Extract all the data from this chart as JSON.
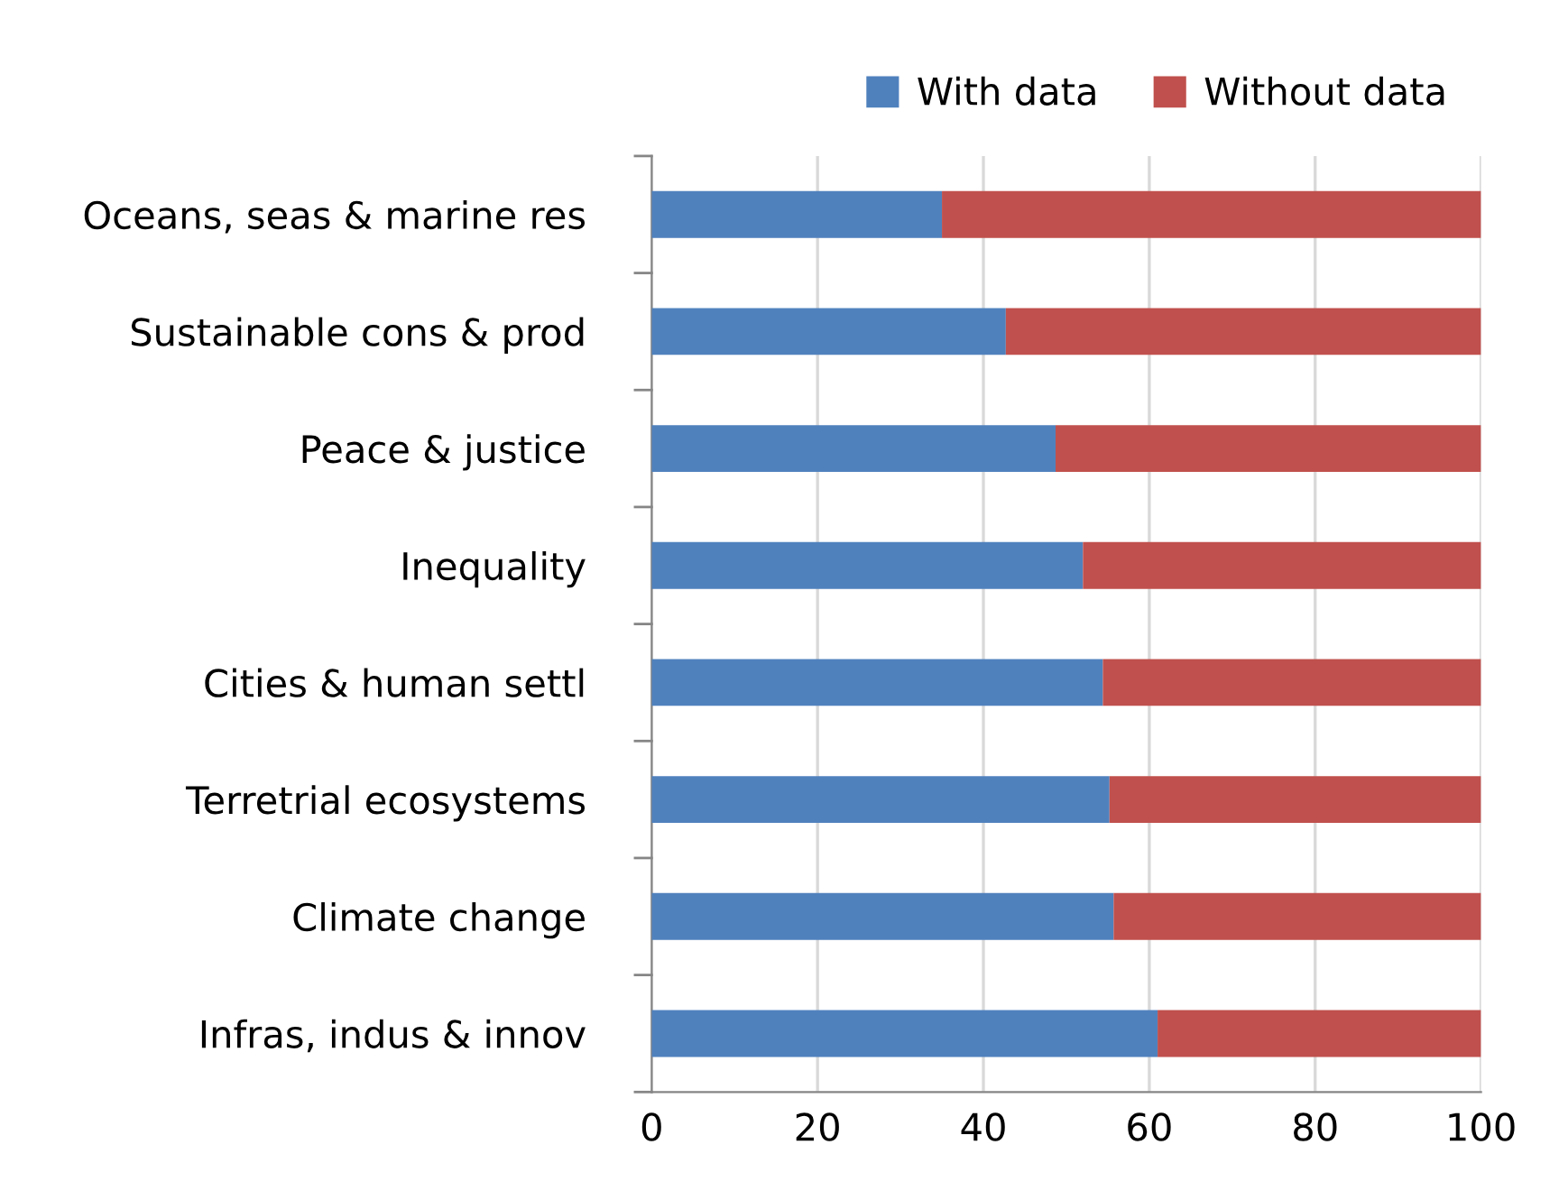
{
  "chart_data": {
    "type": "bar",
    "orientation": "horizontal",
    "stacked": true,
    "categories": [
      "Oceans, seas & marine res",
      "Sustainable cons & prod",
      "Peace & justice",
      "Inequality",
      "Cities & human settl",
      "Terretrial ecosystems",
      "Climate change",
      "Infras, indus & innov"
    ],
    "series": [
      {
        "name": "With data",
        "color": "#4f81bd",
        "values": [
          35,
          42.7,
          48.7,
          52,
          54.4,
          55.2,
          55.7,
          61
        ]
      },
      {
        "name": "Without data",
        "color": "#c0504d",
        "values": [
          65,
          57.3,
          51.3,
          48,
          45.6,
          44.8,
          44.3,
          39
        ]
      }
    ],
    "xlim": [
      0,
      100
    ],
    "xticks": [
      0,
      20,
      40,
      60,
      80,
      100
    ],
    "grid": "x",
    "legend": "top right"
  }
}
